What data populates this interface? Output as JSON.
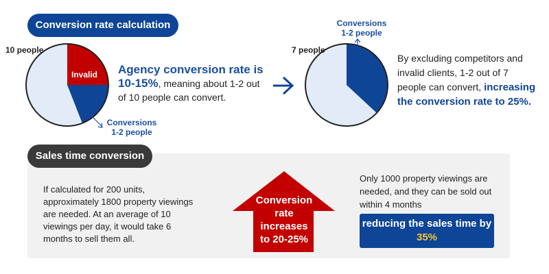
{
  "section1": {
    "title": "Conversion rate calculation",
    "chart1": {
      "people_label": "10 people",
      "invalid_label": "Invalid",
      "conversions_line1": "Conversions",
      "conversions_line2": "1-2 people"
    },
    "text1": {
      "highlight": "Agency conversion rate is 10-15%",
      "rest": ", meaning about 1-2 out of 10 people can convert."
    },
    "chart2": {
      "people_label": "7 people",
      "conversions_line1": "Conversions",
      "conversions_line2": "1-2 people"
    },
    "text2": {
      "plain": "By excluding competitors and invalid clients, 1-2 out of 7 people can convert,",
      "highlight": "increasing the conversion rate to 25%."
    }
  },
  "section2": {
    "title": "Sales time conversion",
    "left_text": "If calculated for 200 units, approximately 1800 property viewings are needed. At an average of 10 viewings per day, it would take 6 months to sell them all.",
    "arrow_line1": "Conversion",
    "arrow_line2": "rate",
    "arrow_line3": "increases",
    "arrow_line4": "to 20-25%",
    "right_text": "Only 1000 property viewings are needed, and they can be sold out within 4 months",
    "result_prefix": "reducing the sales time by ",
    "result_pct": "35%"
  },
  "colors": {
    "blue": "#0e4597",
    "red": "#c20000",
    "light": "#e2ebf7",
    "gray_pill": "#3a3a3a",
    "panel": "#f1f1f1",
    "yellow": "#f5c53a"
  },
  "icons": {
    "transition_arrow": "right-arrow-icon",
    "up_arrow": "up-arrow-shape"
  }
}
